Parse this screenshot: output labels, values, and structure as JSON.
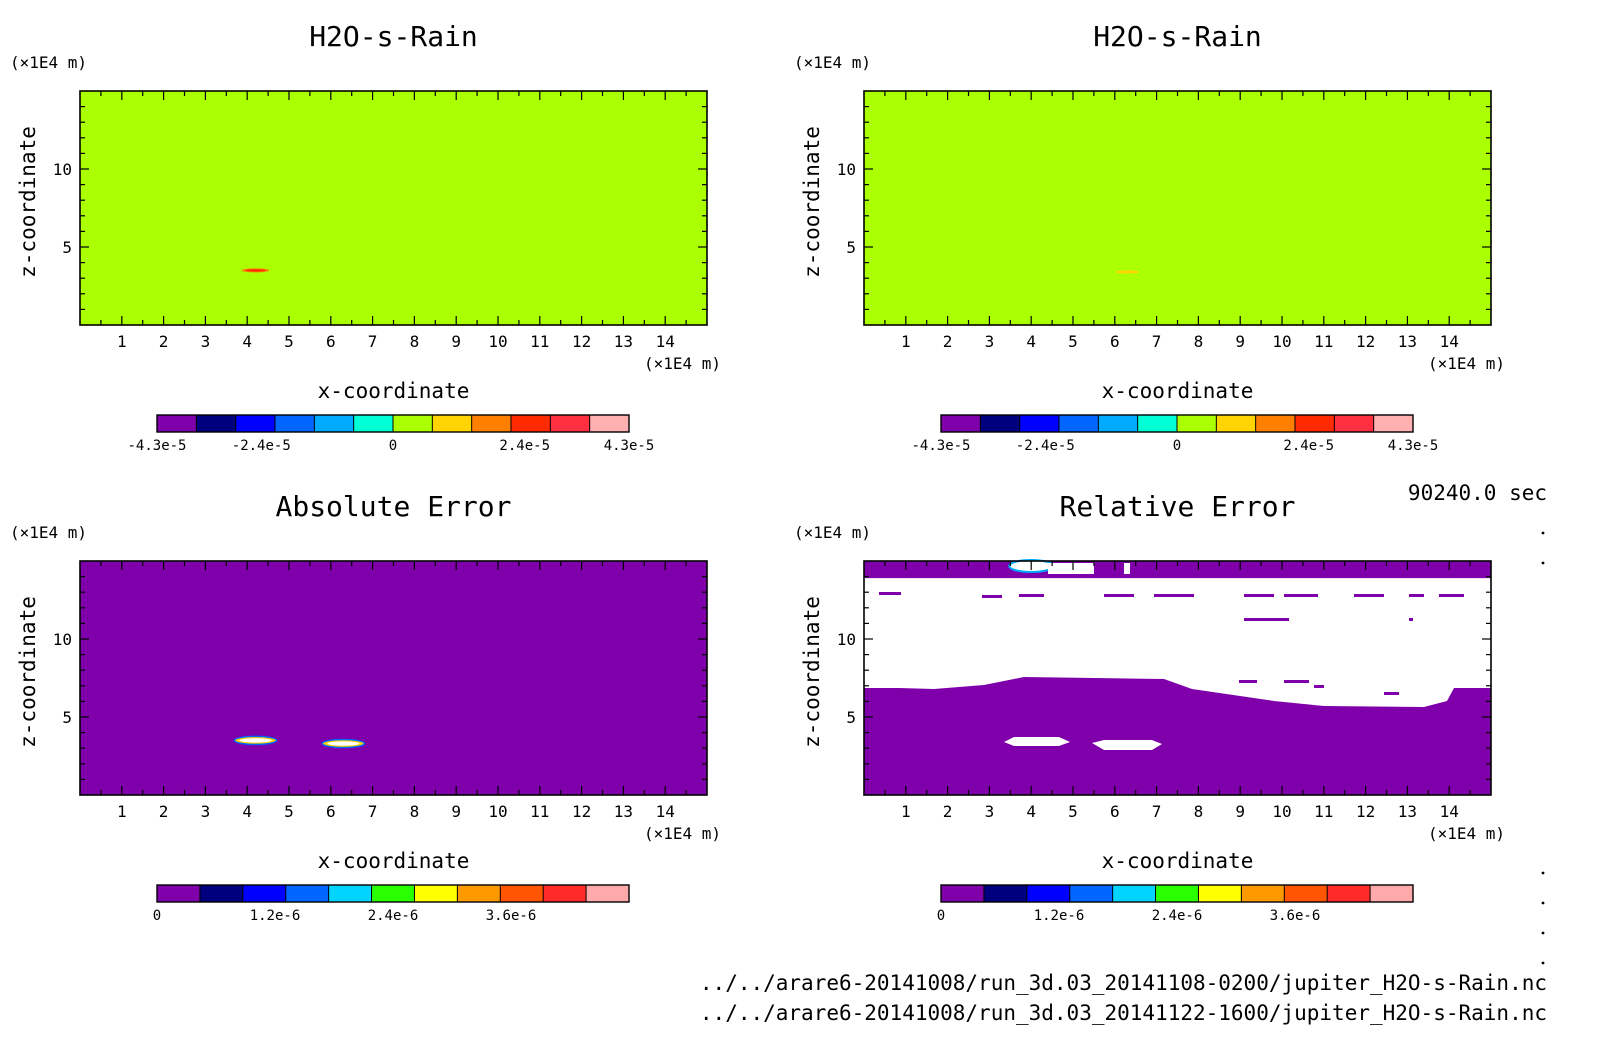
{
  "figure": {
    "time_label": "90240.0 sec",
    "files": [
      "../../arare6-20141008/run_3d.03_20141108-0200/jupiter_H2O-s-Rain.nc",
      "../../arare6-20141008/run_3d.03_20141122-1600/jupiter_H2O-s-Rain.nc"
    ]
  },
  "colors": {
    "field_background": "#aaff00",
    "error_background": "#7f00aa",
    "blank": "#ffffff",
    "colorbar_value": [
      "#7f00aa",
      "#00007f",
      "#0000ff",
      "#0066ff",
      "#00aaff",
      "#00ffd4",
      "#aaff00",
      "#ffd400",
      "#ff8000",
      "#ff2a00",
      "#ff3040",
      "#ffb0b0"
    ],
    "colorbar_error": [
      "#7f00aa",
      "#00007f",
      "#0000ff",
      "#0066ff",
      "#00d4ff",
      "#2aff00",
      "#ffff00",
      "#ff9900",
      "#ff5500",
      "#ff2a2a",
      "#ffaaaa"
    ]
  },
  "chart_data": [
    {
      "type": "heatmap",
      "title": "H2O-s-Rain",
      "xlabel": "x-coordinate",
      "ylabel": "z-coordinate",
      "x_unit": "(×1E4 m)",
      "y_unit": "(×1E4 m)",
      "xlim": [
        0,
        15
      ],
      "ylim": [
        0,
        15
      ],
      "x_ticks": [
        "1",
        "2",
        "3",
        "4",
        "5",
        "6",
        "7",
        "8",
        "9",
        "10",
        "11",
        "12",
        "13",
        "14"
      ],
      "y_ticks": [
        "5",
        "10"
      ],
      "colorbar_ticks": [
        "-4.3e-5",
        "-2.4e-5",
        "0",
        "2.4e-5",
        "4.3e-5"
      ],
      "colorbar_range": [
        -4.3e-05,
        4.3e-05
      ],
      "background_value": 0,
      "features": [
        {
          "x": 4.2,
          "z": 3.5,
          "value": 3e-05
        }
      ]
    },
    {
      "type": "heatmap",
      "title": "H2O-s-Rain",
      "xlabel": "x-coordinate",
      "ylabel": "z-coordinate",
      "x_unit": "(×1E4 m)",
      "y_unit": "(×1E4 m)",
      "xlim": [
        0,
        15
      ],
      "ylim": [
        0,
        15
      ],
      "x_ticks": [
        "1",
        "2",
        "3",
        "4",
        "5",
        "6",
        "7",
        "8",
        "9",
        "10",
        "11",
        "12",
        "13",
        "14"
      ],
      "y_ticks": [
        "5",
        "10"
      ],
      "colorbar_ticks": [
        "-4.3e-5",
        "-2.4e-5",
        "0",
        "2.4e-5",
        "4.3e-5"
      ],
      "colorbar_range": [
        -4.3e-05,
        4.3e-05
      ],
      "background_value": 0,
      "features": [
        {
          "x": 6.3,
          "z": 3.4,
          "value": 1e-05
        }
      ]
    },
    {
      "type": "heatmap",
      "title": "Absolute Error",
      "xlabel": "x-coordinate",
      "ylabel": "z-coordinate",
      "x_unit": "(×1E4 m)",
      "y_unit": "(×1E4 m)",
      "xlim": [
        0,
        15
      ],
      "ylim": [
        0,
        15
      ],
      "x_ticks": [
        "1",
        "2",
        "3",
        "4",
        "5",
        "6",
        "7",
        "8",
        "9",
        "10",
        "11",
        "12",
        "13",
        "14"
      ],
      "y_ticks": [
        "5",
        "10"
      ],
      "colorbar_ticks": [
        "0",
        "1.2e-6",
        "2.4e-6",
        "3.6e-6"
      ],
      "colorbar_range": [
        0,
        4.8e-06
      ],
      "background_value": 0,
      "features": [
        {
          "x": 4.2,
          "z": 3.5,
          "value": "above range"
        },
        {
          "x": 6.3,
          "z": 3.3,
          "value": "above range"
        }
      ]
    },
    {
      "type": "heatmap",
      "title": "Relative Error",
      "xlabel": "x-coordinate",
      "ylabel": "z-coordinate",
      "x_unit": "(×1E4 m)",
      "y_unit": "(×1E4 m)",
      "xlim": [
        0,
        15
      ],
      "ylim": [
        0,
        15
      ],
      "x_ticks": [
        "1",
        "2",
        "3",
        "4",
        "5",
        "6",
        "7",
        "8",
        "9",
        "10",
        "11",
        "12",
        "13",
        "14"
      ],
      "y_ticks": [
        "5",
        "10"
      ],
      "colorbar_ticks": [
        "0",
        "1.2e-6",
        "2.4e-6",
        "3.6e-6"
      ],
      "colorbar_range": [
        0,
        4.8e-06
      ],
      "background_value": 0,
      "undefined_region_z": [
        6.8,
        13.9
      ],
      "features": [
        {
          "x": 4.0,
          "z": 14.8,
          "value": "above range"
        },
        {
          "x": 4.2,
          "z": 3.5,
          "value": "undefined"
        },
        {
          "x": 6.6,
          "z": 3.2,
          "value": "undefined"
        }
      ]
    }
  ]
}
